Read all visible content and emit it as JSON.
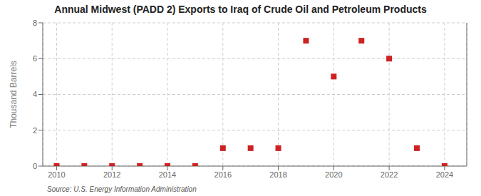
{
  "chart_data": {
    "type": "scatter",
    "title": "Annual Midwest (PADD 2) Exports to Iraq of Crude Oil and Petroleum Products",
    "ylabel": "Thousand Barrels",
    "annotations": [
      "Source: U.S. Energy Information Administration"
    ],
    "x": [
      2010,
      2011,
      2012,
      2013,
      2014,
      2015,
      2016,
      2017,
      2018,
      2019,
      2020,
      2021,
      2022,
      2023,
      2024
    ],
    "values": [
      0,
      0,
      0,
      0,
      0,
      0,
      1,
      1,
      1,
      7,
      5,
      7,
      6,
      1,
      0
    ],
    "color": "#cc2222",
    "marker": "square",
    "xlim": [
      2009.5,
      2024.8
    ],
    "ylim": [
      0,
      8
    ],
    "xticks": [
      2010,
      2012,
      2014,
      2016,
      2018,
      2020,
      2022,
      2024
    ],
    "yticks": [
      0,
      2,
      4,
      6,
      8
    ],
    "grid": true
  }
}
